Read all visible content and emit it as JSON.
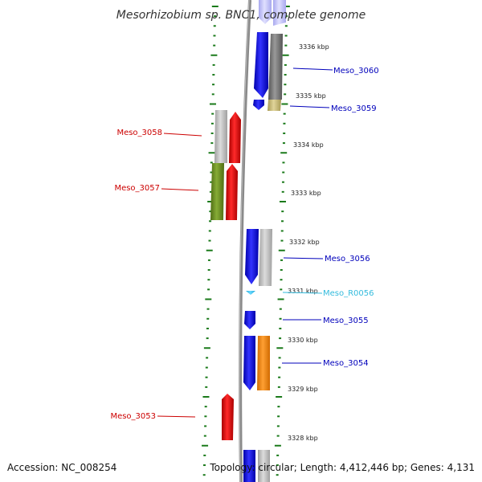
{
  "title": "Mesorhizobium sp. BNC1, complete genome",
  "footer": {
    "accession": "Accession: NC_008254",
    "topology": "Topology: circular; Length: 4,412,446 bp; Genes: 4,131"
  },
  "colors": {
    "plus_label": "#0000bb",
    "minus_label": "#cc0000",
    "rna_label": "#33bbdd",
    "tick": "#1a7a1a",
    "backbone": "#888888"
  },
  "scale": [
    {
      "label": "3336 kbp",
      "value": 3336
    },
    {
      "label": "3335 kbp",
      "value": 3335
    },
    {
      "label": "3334 kbp",
      "value": 3334
    },
    {
      "label": "3333 kbp",
      "value": 3333
    },
    {
      "label": "3332 kbp",
      "value": 3332
    },
    {
      "label": "3331 kbp",
      "value": 3331
    },
    {
      "label": "3330 kbp",
      "value": 3330
    },
    {
      "label": "3329 kbp",
      "value": 3329
    },
    {
      "label": "3328 kbp",
      "value": 3328
    }
  ],
  "gene_labels": [
    {
      "name": "Meso_3060",
      "strand": "plus"
    },
    {
      "name": "Meso_3059",
      "strand": "plus"
    },
    {
      "name": "Meso_3058",
      "strand": "minus"
    },
    {
      "name": "Meso_3057",
      "strand": "minus"
    },
    {
      "name": "Meso_3056",
      "strand": "plus"
    },
    {
      "name": "Meso_R0056",
      "strand": "rna"
    },
    {
      "name": "Meso_3055",
      "strand": "plus"
    },
    {
      "name": "Meso_3054",
      "strand": "plus"
    },
    {
      "name": "Meso_3053",
      "strand": "minus"
    }
  ]
}
